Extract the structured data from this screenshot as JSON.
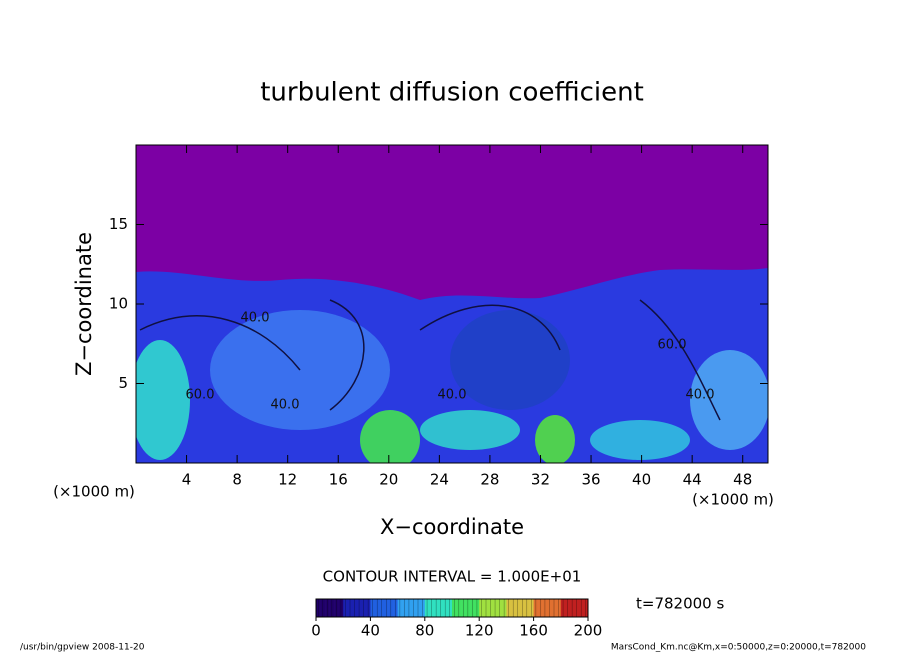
{
  "chart_data": {
    "type": "contour",
    "title": "turbulent diffusion coefficient",
    "x_label": "X−coordinate",
    "y_label": "Z−coordinate",
    "x_unit": "(×1000 m)",
    "y_unit": "(×1000 m)",
    "xlim": [
      0,
      50
    ],
    "ylim": [
      0,
      20
    ],
    "xticks": [
      4,
      8,
      12,
      16,
      20,
      24,
      28,
      32,
      36,
      40,
      44,
      48
    ],
    "yticks": [
      5,
      10,
      15
    ],
    "contour_labels": [
      "40.0",
      "40.0",
      "60.0",
      "40.0",
      "60.0",
      "40.0"
    ],
    "contour_interval": "CONTOUR INTERVAL = 1.000E+01",
    "time_label": "t=782000 s",
    "colorbar": {
      "clim": [
        0,
        200
      ],
      "ticks": [
        0,
        40,
        80,
        120,
        160,
        200
      ],
      "colors": [
        "#20006a",
        "#1a20b0",
        "#2060e0",
        "#30a0f0",
        "#30e0c0",
        "#40e060",
        "#a0e040",
        "#d8c040",
        "#e07030",
        "#c02020"
      ]
    },
    "footer_left": "/usr/bin/gpview  2008-11-20",
    "footer_right": "MarsCond_Km.nc@Km,x=0:50000,z=0:20000,t=782000"
  }
}
